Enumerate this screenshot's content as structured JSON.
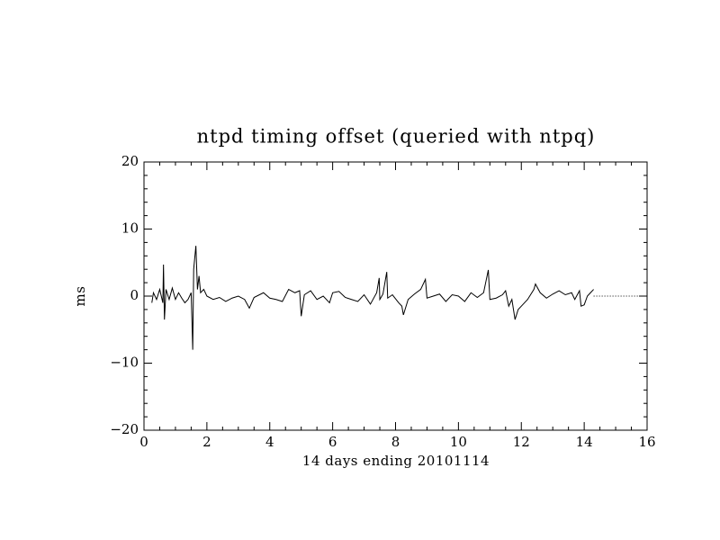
{
  "chart_data": {
    "type": "line",
    "title": "ntpd timing offset (queried with ntpq)",
    "x_label": "14 days ending 20101114",
    "y_label": "ms",
    "xlim": [
      0,
      16
    ],
    "ylim": [
      -20,
      20
    ],
    "xticks": [
      0,
      2,
      4,
      6,
      8,
      10,
      12,
      14,
      16
    ],
    "yticks": [
      {
        "value": -20,
        "label": "−20"
      },
      {
        "value": -10,
        "label": "−10"
      },
      0,
      10,
      20
    ],
    "x_minor_divisions": 4,
    "y_minor_divisions": 5,
    "hline": {
      "y": 0,
      "xlim": [
        14.3,
        16
      ],
      "style": "dotted"
    },
    "series": [
      {
        "color": "#000000",
        "x": [
          0.25,
          0.3,
          0.4,
          0.5,
          0.6,
          0.62,
          0.65,
          0.7,
          0.8,
          0.9,
          1.0,
          1.1,
          1.2,
          1.3,
          1.4,
          1.5,
          1.55,
          1.58,
          1.65,
          1.7,
          1.75,
          1.8,
          1.9,
          2.0,
          2.2,
          2.4,
          2.6,
          2.8,
          3.0,
          3.2,
          3.35,
          3.5,
          3.8,
          4.0,
          4.2,
          4.4,
          4.6,
          4.8,
          4.95,
          5.0,
          5.1,
          5.3,
          5.5,
          5.7,
          5.9,
          6.0,
          6.2,
          6.4,
          6.6,
          6.8,
          7.0,
          7.2,
          7.4,
          7.48,
          7.5,
          7.6,
          7.72,
          7.75,
          7.9,
          8.1,
          8.2,
          8.25,
          8.4,
          8.6,
          8.8,
          8.95,
          9.0,
          9.2,
          9.4,
          9.6,
          9.8,
          10.0,
          10.2,
          10.4,
          10.6,
          10.8,
          10.95,
          11.0,
          11.2,
          11.4,
          11.5,
          11.6,
          11.7,
          11.8,
          11.9,
          12.0,
          12.2,
          12.4,
          12.45,
          12.6,
          12.8,
          13.0,
          13.2,
          13.4,
          13.6,
          13.7,
          13.85,
          13.9,
          14.0,
          14.1,
          14.2,
          14.3
        ],
        "values": [
          -1,
          0.5,
          -0.5,
          1,
          -1,
          4.7,
          -3.5,
          1,
          -0.5,
          1.2,
          -0.5,
          0.5,
          -0.3,
          -1,
          -0.5,
          0.5,
          -8,
          4,
          7.5,
          1,
          3,
          0.5,
          1,
          0,
          -0.5,
          -0.2,
          -0.8,
          -0.3,
          0,
          -0.5,
          -1.8,
          -0.2,
          0.5,
          -0.3,
          -0.5,
          -0.8,
          1,
          0.5,
          0.8,
          -3,
          0.2,
          0.8,
          -0.5,
          0,
          -1,
          0.5,
          0.7,
          -0.2,
          -0.5,
          -0.8,
          0.2,
          -1.2,
          0.5,
          2.7,
          -0.5,
          0.3,
          3.6,
          -0.3,
          0.2,
          -1,
          -1.5,
          -2.8,
          -0.5,
          0.3,
          1,
          2.5,
          -0.3,
          0,
          0.3,
          -0.8,
          0.2,
          0,
          -0.8,
          0.5,
          -0.2,
          0.5,
          3.9,
          -0.5,
          -0.3,
          0.2,
          0.8,
          -1.5,
          -0.5,
          -3.5,
          -2,
          -1.5,
          -0.5,
          1,
          1.8,
          0.5,
          -0.3,
          0.3,
          0.8,
          0.2,
          0.5,
          -0.5,
          0.8,
          -1.5,
          -1.3,
          0,
          0.5,
          1
        ]
      }
    ]
  }
}
